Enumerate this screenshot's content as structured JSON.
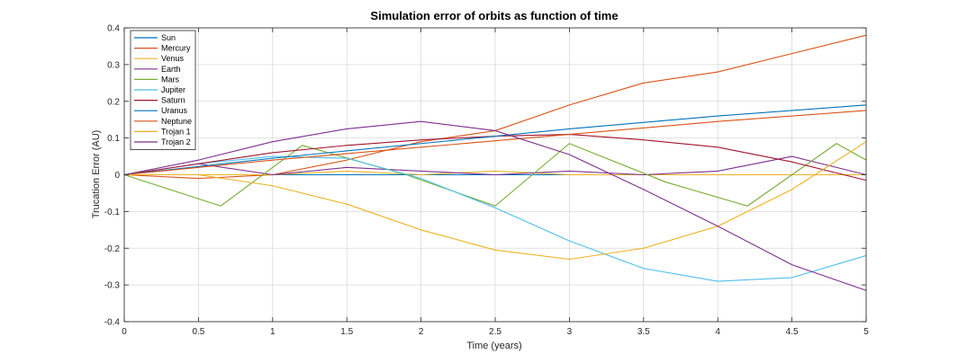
{
  "chart_data": {
    "type": "line",
    "title": "Simulation error of orbits as function of time",
    "xlabel": "Time (years)",
    "ylabel": "Trucation Error (AU)",
    "xlim": [
      0,
      5
    ],
    "ylim": [
      -0.4,
      0.4
    ],
    "xticks": [
      "0",
      "0.5",
      "1",
      "1.5",
      "2",
      "2.5",
      "3",
      "3.5",
      "4",
      "4.5",
      "5"
    ],
    "yticks": [
      "-0.4",
      "-0.3",
      "-0.2",
      "-0.1",
      "0",
      "0.1",
      "0.2",
      "0.3",
      "0.4"
    ],
    "grid": true,
    "legend_position": "top-left",
    "series": [
      {
        "name": "Sun",
        "color": "#0072BD",
        "x": [
          0,
          5
        ],
        "y": [
          0,
          0
        ]
      },
      {
        "name": "Mercury",
        "color": "#D95319",
        "x": [
          0,
          0.5,
          1,
          1.5,
          2,
          2.5,
          3,
          3.5,
          4,
          4.5,
          5
        ],
        "y": [
          0,
          -0.01,
          0.0,
          0.04,
          0.09,
          0.12,
          0.19,
          0.25,
          0.28,
          0.33,
          0.38
        ]
      },
      {
        "name": "Venus",
        "color": "#EDB120",
        "x": [
          0,
          0.5,
          1,
          1.5,
          2,
          2.5,
          3,
          3.5,
          4,
          4.5,
          5
        ],
        "y": [
          0,
          0.0,
          0.0,
          0.01,
          0.0,
          0.01,
          0.0,
          0.0,
          0.0,
          0.0,
          0.0
        ]
      },
      {
        "name": "Earth",
        "color": "#7E2F8E",
        "x": [
          0,
          0.5,
          1,
          1.5,
          2,
          2.5,
          3,
          3.5,
          4,
          4.5,
          5
        ],
        "y": [
          0,
          0.03,
          0.0,
          0.02,
          0.01,
          0.0,
          0.01,
          0.0,
          0.01,
          0.05,
          0.0
        ]
      },
      {
        "name": "Mars",
        "color": "#77AC30",
        "x": [
          0,
          0.65,
          1.2,
          1.9,
          2.5,
          3.0,
          3.65,
          4.2,
          4.8,
          5
        ],
        "y": [
          0,
          -0.085,
          0.08,
          0.0,
          -0.085,
          0.085,
          -0.02,
          -0.085,
          0.085,
          0.04
        ]
      },
      {
        "name": "Jupiter",
        "color": "#4DBEEE",
        "x": [
          0,
          0.5,
          1,
          1.5,
          2,
          2.5,
          3,
          3.5,
          4,
          4.5,
          5
        ],
        "y": [
          0,
          0.03,
          0.05,
          0.045,
          -0.01,
          -0.09,
          -0.18,
          -0.255,
          -0.29,
          -0.28,
          -0.22
        ]
      },
      {
        "name": "Saturn",
        "color": "#A2142F",
        "x": [
          0,
          0.5,
          1,
          1.5,
          2,
          2.5,
          3,
          3.5,
          4,
          4.5,
          5
        ],
        "y": [
          0,
          0.03,
          0.06,
          0.08,
          0.095,
          0.105,
          0.11,
          0.095,
          0.075,
          0.035,
          -0.015
        ]
      },
      {
        "name": "Uranus",
        "color": "#0072BD",
        "x": [
          0,
          1,
          2,
          3,
          4,
          5
        ],
        "y": [
          0,
          0.045,
          0.085,
          0.125,
          0.16,
          0.19
        ]
      },
      {
        "name": "Neptune",
        "color": "#D95319",
        "x": [
          0,
          1,
          2,
          3,
          4,
          5
        ],
        "y": [
          0,
          0.04,
          0.075,
          0.11,
          0.145,
          0.175
        ]
      },
      {
        "name": "Trojan 1",
        "color": "#EDB120",
        "x": [
          0,
          0.5,
          1,
          1.5,
          2,
          2.5,
          3,
          3.5,
          4,
          4.5,
          5
        ],
        "y": [
          0,
          0.0,
          -0.03,
          -0.08,
          -0.15,
          -0.205,
          -0.23,
          -0.2,
          -0.14,
          -0.04,
          0.09
        ]
      },
      {
        "name": "Trojan 2",
        "color": "#7E2F8E",
        "x": [
          0,
          0.5,
          1,
          1.5,
          2,
          2.5,
          3,
          3.5,
          4,
          4.5,
          5
        ],
        "y": [
          0,
          0.04,
          0.09,
          0.125,
          0.145,
          0.12,
          0.055,
          -0.04,
          -0.14,
          -0.245,
          -0.315
        ]
      }
    ]
  }
}
